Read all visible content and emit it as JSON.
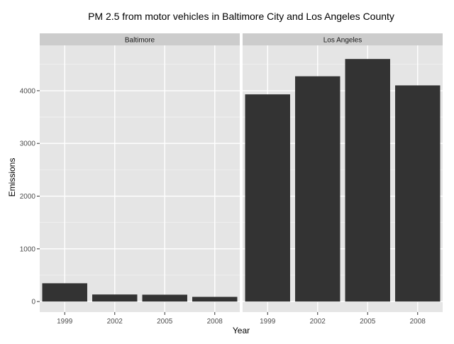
{
  "chart_data": {
    "type": "bar",
    "title": "PM 2.5 from motor vehicles in Baltimore City and Los Angeles County",
    "xlabel": "Year",
    "ylabel": "Emissions",
    "categories": [
      "1999",
      "2002",
      "2005",
      "2008"
    ],
    "yticks": [
      0,
      1000,
      2000,
      3000,
      4000
    ],
    "yticks_labels": [
      "0",
      "1000",
      "2000",
      "3000",
      "4000"
    ],
    "ylim": [
      -200,
      4860
    ],
    "grid": true,
    "legend": "none",
    "panels": [
      {
        "name": "Baltimore",
        "values": [
          347,
          134,
          130,
          89
        ]
      },
      {
        "name": "Los Angeles",
        "values": [
          3931,
          4274,
          4602,
          4101
        ]
      }
    ]
  },
  "colors": {
    "bar": "#333333",
    "panel_bg": "#e5e5e5",
    "strip_bg": "#cccccc",
    "grid_major": "#ffffff",
    "grid_minor": "#f2f2f2"
  }
}
